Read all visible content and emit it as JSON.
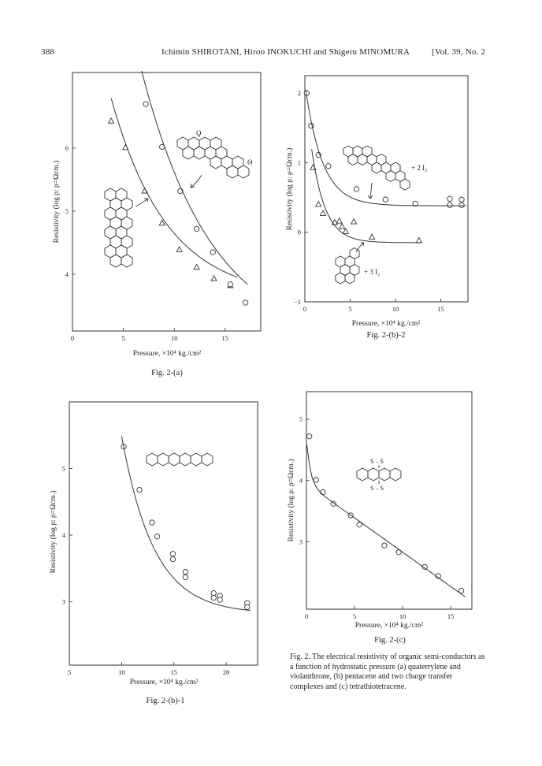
{
  "header": {
    "page_number": "388",
    "authors": "Ichimin SHIROTANI, Hiroo INOKUCHI and Shigeru MINOMURA",
    "volume": "[Vol. 39, No. 2"
  },
  "colors": {
    "ink": "#222222",
    "frame": "#333333"
  },
  "caption": "Fig. 2.  The electrical resistivity of organic semi-conductors as a function of hydrostatic pressure (a) quaterrylene and violanthrone, (b) pentacene and two charge transfer complexes and (c) tetrathiotetracene.",
  "chart_data": [
    {
      "id": "a",
      "type": "scatter",
      "caption": "Fig. 2-(a)",
      "xlabel": "Pressure, ×10⁴ kg./cm²",
      "ylabel": "Resistivity (log ρ: ρ=Ωcm.)",
      "xlim": [
        0,
        18.5
      ],
      "ylim": [
        3.1,
        7.2
      ],
      "xticks": [
        0,
        5,
        10,
        15
      ],
      "yticks": [
        4,
        5,
        6
      ],
      "grid": false,
      "series": [
        {
          "marker": "triangle",
          "x": [
            3.8,
            5.2,
            7.1,
            8.8,
            10.5,
            12.2,
            13.9,
            15.5
          ],
          "y": [
            6.43,
            6.01,
            5.32,
            4.81,
            4.39,
            4.11,
            3.93,
            3.82
          ]
        },
        {
          "marker": "circle",
          "x": [
            7.2,
            8.8,
            10.6,
            12.2,
            13.8,
            15.5,
            17.0
          ],
          "y": [
            6.7,
            6.02,
            5.32,
            4.72,
            4.35,
            3.84,
            3.55
          ]
        }
      ],
      "annotations": [
        "O",
        "O"
      ]
    },
    {
      "id": "b2",
      "type": "scatter",
      "caption": "Fig. 2-(b)-2",
      "xlabel": "Pressure, ×10⁴ kg./cm²",
      "ylabel": "Resistivity (log ρ: ρ=Ωcm.)",
      "xlim": [
        0,
        18
      ],
      "ylim": [
        -1,
        2.25
      ],
      "xticks": [
        0,
        5,
        10,
        15
      ],
      "yticks": [
        -1,
        0,
        1,
        2
      ],
      "grid": false,
      "series": [
        {
          "marker": "circle",
          "x": [
            0.2,
            0.7,
            1.5,
            2.6,
            5.7,
            8.9,
            12.2,
            16.0,
            16.0,
            17.3,
            17.3
          ],
          "y": [
            2.0,
            1.53,
            1.11,
            0.95,
            0.62,
            0.47,
            0.41,
            0.48,
            0.39,
            0.47,
            0.39
          ]
        },
        {
          "marker": "triangle",
          "x": [
            0.9,
            1.5,
            2.0,
            3.3,
            3.8,
            4.1,
            4.5,
            5.4,
            7.4,
            12.6
          ],
          "y": [
            0.93,
            0.4,
            0.27,
            0.14,
            0.16,
            0.08,
            0.01,
            0.15,
            -0.07,
            -0.12
          ]
        }
      ],
      "annotations": [
        "+ 2 I₂",
        "+ 3 I₂"
      ]
    },
    {
      "id": "b1",
      "type": "scatter",
      "caption": "Fig. 2-(b)-1",
      "xlabel": "Pressure, ×10⁴ kg./cm²",
      "ylabel": "Resistivity (log ρ: ρ=Ωcm.)",
      "xlim": [
        5,
        23
      ],
      "ylim": [
        2.05,
        6.0
      ],
      "xticks": [
        5,
        10,
        15,
        20
      ],
      "yticks": [
        3,
        4,
        5
      ],
      "grid": false,
      "series": [
        {
          "marker": "circle",
          "x": [
            10.2,
            11.7,
            12.9,
            13.4,
            14.9,
            14.9,
            16.1,
            16.1,
            18.8,
            18.8,
            19.4,
            19.4,
            22.0,
            22.0
          ],
          "y": [
            5.33,
            4.68,
            4.19,
            3.98,
            3.72,
            3.64,
            3.45,
            3.37,
            3.13,
            3.06,
            3.09,
            3.03,
            2.98,
            2.92
          ]
        }
      ]
    },
    {
      "id": "c",
      "type": "scatter",
      "caption": "Fig. 2-(c)",
      "xlabel": "Pressure, ×10⁴ kg./cm²",
      "ylabel": "Resistivity (log ρ: ρ=Ωcm.)",
      "xlim": [
        0,
        17.2
      ],
      "ylim": [
        1.9,
        5.45
      ],
      "xticks": [
        0,
        5,
        10,
        15
      ],
      "yticks": [
        3,
        4,
        5
      ],
      "grid": false,
      "series": [
        {
          "marker": "circle",
          "x": [
            0.3,
            1.0,
            1.7,
            2.8,
            4.6,
            5.5,
            8.1,
            9.6,
            12.3,
            13.7,
            16.1
          ],
          "y": [
            4.72,
            4.01,
            3.81,
            3.62,
            3.43,
            3.28,
            2.94,
            2.83,
            2.59,
            2.44,
            2.2
          ]
        }
      ],
      "annotations": [
        "S – S",
        "S – S"
      ]
    }
  ]
}
